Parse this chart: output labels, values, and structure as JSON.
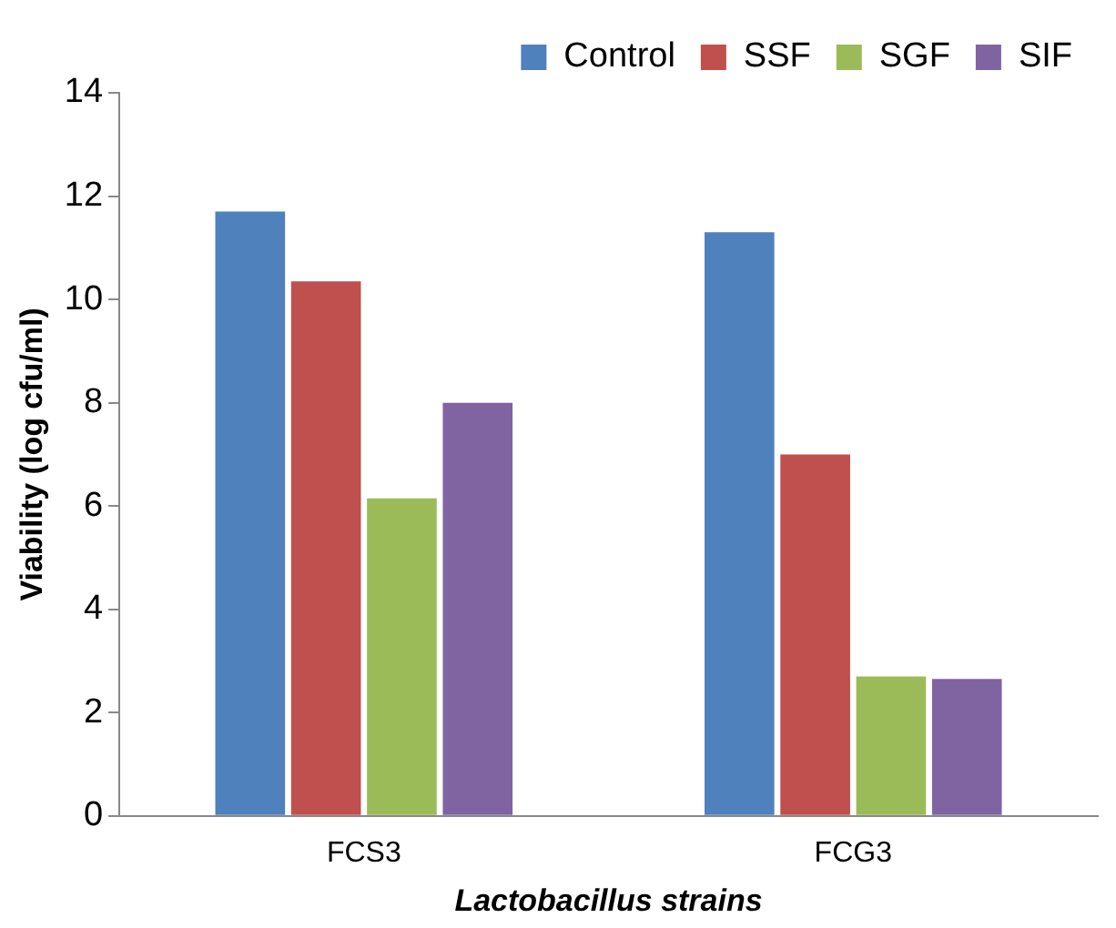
{
  "chart_data": {
    "type": "bar",
    "xlabel": "Lactobacillus strains",
    "ylabel": "Viability (log cfu/ml)",
    "categories": [
      "FCS3",
      "FCG3"
    ],
    "series": [
      {
        "name": "Control",
        "color": "#4f81bd",
        "values": [
          11.7,
          11.3
        ]
      },
      {
        "name": "SSF",
        "color": "#c0504d",
        "values": [
          10.35,
          7.0
        ]
      },
      {
        "name": "SGF",
        "color": "#9bbb59",
        "values": [
          6.15,
          2.7
        ]
      },
      {
        "name": "SIF",
        "color": "#8064a2",
        "values": [
          8.0,
          2.65
        ]
      }
    ],
    "ylim": [
      0,
      14
    ],
    "yticks": [
      0,
      2,
      4,
      6,
      8,
      10,
      12,
      14
    ],
    "grid": false,
    "legend": "top right"
  }
}
